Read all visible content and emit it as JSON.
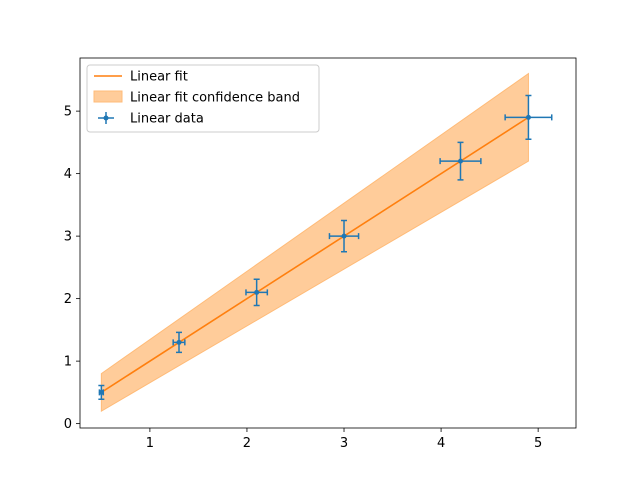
{
  "chart_data": {
    "type": "scatter",
    "title": "",
    "xlabel": "",
    "ylabel": "",
    "xlim": [
      0.28,
      5.39
    ],
    "ylim": [
      -0.07,
      5.85
    ],
    "xticks": [
      1,
      2,
      3,
      4,
      5
    ],
    "yticks": [
      0,
      1,
      2,
      3,
      4,
      5
    ],
    "grid": false,
    "legend_position": "top-left",
    "colors": {
      "data": "#1f77b4",
      "fit": "#ff7f0e",
      "band_fill": "#ffbb78",
      "axis": "#000000"
    },
    "series": [
      {
        "name": "Linear data",
        "kind": "errorbar",
        "x": [
          0.5,
          1.3,
          2.1,
          3.0,
          4.2,
          4.9
        ],
        "y": [
          0.5,
          1.3,
          2.1,
          3.0,
          4.2,
          4.9
        ],
        "xerr": [
          0.02,
          0.06,
          0.11,
          0.15,
          0.21,
          0.24
        ],
        "yerr": [
          0.11,
          0.16,
          0.21,
          0.25,
          0.3,
          0.35
        ]
      },
      {
        "name": "Linear fit",
        "kind": "line",
        "x": [
          0.5,
          4.9
        ],
        "y": [
          0.5,
          4.9
        ]
      },
      {
        "name": "Linear fit confidence band",
        "kind": "band",
        "x": [
          0.5,
          4.9
        ],
        "lower": [
          0.2,
          4.2
        ],
        "upper": [
          0.8,
          5.6
        ]
      }
    ]
  }
}
